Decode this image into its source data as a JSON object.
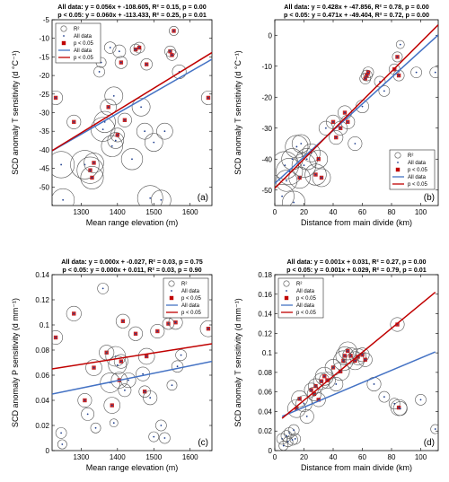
{
  "figure": {
    "colors": {
      "all_data": "#4472c4",
      "significant": "#c00000",
      "point": "#1f3f8f",
      "circle": "#555555"
    },
    "legend_labels": [
      "R²",
      "All data",
      "p < 0.05",
      "All data",
      "p < 0.05"
    ]
  },
  "chart_data": [
    {
      "type": "scatter",
      "panel": "(a)",
      "title_line1": "All data: y = 0.056x + -108.605, R² = 0.15, p = 0.00",
      "title_line2": "p < 0.05: y = 0.060x + -113.433, R² = 0.25, p = 0.01",
      "xlabel": "Mean range elevation (m)",
      "ylabel": "SCD anomaly T sensitivity (d °C⁻¹)",
      "xlim": [
        1220,
        1660
      ],
      "ylim": [
        -55,
        -5
      ],
      "xticks": [
        1300,
        1400,
        1500,
        1600
      ],
      "yticks": [
        -50,
        -45,
        -40,
        -35,
        -30,
        -25,
        -20,
        -15,
        -10,
        -5
      ],
      "legend_position": "top-left",
      "fit_all": {
        "slope": 0.056,
        "intercept": -108.605
      },
      "fit_sig": {
        "slope": 0.06,
        "intercept": -113.433
      },
      "points": [
        {
          "x": 1230,
          "y": -26,
          "r2": 0.1,
          "sig": true
        },
        {
          "x": 1245,
          "y": -44,
          "r2": 0.5,
          "sig": false
        },
        {
          "x": 1250,
          "y": -53.5,
          "r2": 0.35,
          "sig": false
        },
        {
          "x": 1280,
          "y": -32.5,
          "r2": 0.1,
          "sig": true
        },
        {
          "x": 1310,
          "y": -44,
          "r2": 0.6,
          "sig": false
        },
        {
          "x": 1325,
          "y": -45.5,
          "r2": 0.5,
          "sig": true
        },
        {
          "x": 1330,
          "y": -47.5,
          "r2": 0.35,
          "sig": true
        },
        {
          "x": 1335,
          "y": -43.5,
          "r2": 0.25,
          "sig": true
        },
        {
          "x": 1350,
          "y": -19,
          "r2": 0.05,
          "sig": false
        },
        {
          "x": 1355,
          "y": -16.5,
          "r2": 0.04,
          "sig": false
        },
        {
          "x": 1360,
          "y": -34.5,
          "r2": 0.4,
          "sig": false
        },
        {
          "x": 1365,
          "y": -32.5,
          "r2": 0.3,
          "sig": false
        },
        {
          "x": 1375,
          "y": -28.5,
          "r2": 0.15,
          "sig": true
        },
        {
          "x": 1380,
          "y": -12.5,
          "r2": 0.06,
          "sig": false
        },
        {
          "x": 1385,
          "y": -39,
          "r2": 0.3,
          "sig": false
        },
        {
          "x": 1390,
          "y": -25.5,
          "r2": 0.2,
          "sig": false
        },
        {
          "x": 1395,
          "y": -37.5,
          "r2": 0.15,
          "sig": false
        },
        {
          "x": 1400,
          "y": -36,
          "r2": 0.1,
          "sig": true
        },
        {
          "x": 1405,
          "y": -13.5,
          "r2": 0.08,
          "sig": false
        },
        {
          "x": 1410,
          "y": -16.5,
          "r2": 0.07,
          "sig": true
        },
        {
          "x": 1420,
          "y": -32,
          "r2": 0.1,
          "sig": true
        },
        {
          "x": 1440,
          "y": -42.5,
          "r2": 0.3,
          "sig": false
        },
        {
          "x": 1450,
          "y": -13,
          "r2": 0.05,
          "sig": true
        },
        {
          "x": 1460,
          "y": -12.5,
          "r2": 0.05,
          "sig": true
        },
        {
          "x": 1465,
          "y": -28.5,
          "r2": 0.2,
          "sig": false
        },
        {
          "x": 1475,
          "y": -35,
          "r2": 0.15,
          "sig": false
        },
        {
          "x": 1480,
          "y": -17,
          "r2": 0.06,
          "sig": true
        },
        {
          "x": 1490,
          "y": -53,
          "r2": 0.45,
          "sig": false
        },
        {
          "x": 1500,
          "y": -38,
          "r2": 0.2,
          "sig": false
        },
        {
          "x": 1520,
          "y": -53.5,
          "r2": 0.25,
          "sig": false
        },
        {
          "x": 1530,
          "y": -35,
          "r2": 0.15,
          "sig": false
        },
        {
          "x": 1545,
          "y": -13.5,
          "r2": 0.05,
          "sig": true
        },
        {
          "x": 1550,
          "y": -14.5,
          "r2": 0.05,
          "sig": true
        },
        {
          "x": 1555,
          "y": -8,
          "r2": 0.03,
          "sig": true
        },
        {
          "x": 1570,
          "y": -19,
          "r2": 0.1,
          "sig": false
        },
        {
          "x": 1650,
          "y": -26,
          "r2": 0.1,
          "sig": true
        }
      ]
    },
    {
      "type": "scatter",
      "panel": "(b)",
      "title_line1": "All data: y = 0.428x + -47.856, R² = 0.78, p = 0.00",
      "title_line2": "p < 0.05: y = 0.471x + -49.404, R² = 0.72, p = 0.00",
      "xlabel": "Distance from main divide (km)",
      "ylabel": "SCD anomaly T sensitivity (d °C⁻¹)",
      "xlim": [
        0,
        112
      ],
      "ylim": [
        -55,
        5
      ],
      "xticks": [
        0,
        20,
        40,
        60,
        80,
        100
      ],
      "yticks": [
        -50,
        -40,
        -30,
        -20,
        -10,
        0
      ],
      "legend_position": "bottom-right",
      "fit_all": {
        "slope": 0.428,
        "intercept": -47.856
      },
      "fit_sig": {
        "slope": 0.471,
        "intercept": -49.404
      },
      "points": [
        {
          "x": 5,
          "y": -52,
          "r2": 0.4,
          "sig": false
        },
        {
          "x": 7,
          "y": -42,
          "r2": 0.55,
          "sig": false
        },
        {
          "x": 8,
          "y": -47,
          "r2": 0.3,
          "sig": false
        },
        {
          "x": 10,
          "y": -44,
          "r2": 0.5,
          "sig": false
        },
        {
          "x": 12,
          "y": -40,
          "r2": 0.3,
          "sig": false
        },
        {
          "x": 13,
          "y": -54,
          "r2": 0.35,
          "sig": false
        },
        {
          "x": 15,
          "y": -36,
          "r2": 0.35,
          "sig": false
        },
        {
          "x": 17,
          "y": -46,
          "r2": 0.3,
          "sig": true
        },
        {
          "x": 18,
          "y": -35,
          "r2": 0.2,
          "sig": false
        },
        {
          "x": 20,
          "y": -42,
          "r2": 0.4,
          "sig": false
        },
        {
          "x": 22,
          "y": -40,
          "r2": 0.3,
          "sig": false
        },
        {
          "x": 25,
          "y": -38,
          "r2": 0.2,
          "sig": false
        },
        {
          "x": 28,
          "y": -45,
          "r2": 0.3,
          "sig": true
        },
        {
          "x": 30,
          "y": -40,
          "r2": 0.2,
          "sig": true
        },
        {
          "x": 32,
          "y": -46,
          "r2": 0.2,
          "sig": true
        },
        {
          "x": 35,
          "y": -30,
          "r2": 0.1,
          "sig": false
        },
        {
          "x": 40,
          "y": -28,
          "r2": 0.1,
          "sig": true
        },
        {
          "x": 42,
          "y": -33,
          "r2": 0.1,
          "sig": true
        },
        {
          "x": 45,
          "y": -30,
          "r2": 0.1,
          "sig": true
        },
        {
          "x": 48,
          "y": -25,
          "r2": 0.1,
          "sig": true
        },
        {
          "x": 50,
          "y": -28,
          "r2": 0.1,
          "sig": true
        },
        {
          "x": 55,
          "y": -35,
          "r2": 0.1,
          "sig": false
        },
        {
          "x": 60,
          "y": -23,
          "r2": 0.08,
          "sig": false
        },
        {
          "x": 62,
          "y": -14,
          "r2": 0.05,
          "sig": true
        },
        {
          "x": 63,
          "y": -13,
          "r2": 0.05,
          "sig": true
        },
        {
          "x": 64,
          "y": -12,
          "r2": 0.05,
          "sig": true
        },
        {
          "x": 72,
          "y": -15,
          "r2": 0.05,
          "sig": false
        },
        {
          "x": 75,
          "y": -18,
          "r2": 0.05,
          "sig": false
        },
        {
          "x": 82,
          "y": -11,
          "r2": 0.05,
          "sig": true
        },
        {
          "x": 84,
          "y": -7,
          "r2": 0.04,
          "sig": true
        },
        {
          "x": 85,
          "y": -13,
          "r2": 0.05,
          "sig": true
        },
        {
          "x": 86,
          "y": -3,
          "r2": 0.02,
          "sig": false
        },
        {
          "x": 97,
          "y": -12,
          "r2": 0.05,
          "sig": false
        },
        {
          "x": 110,
          "y": -12,
          "r2": 0.05,
          "sig": false
        }
      ]
    },
    {
      "type": "scatter",
      "panel": "(c)",
      "title_line1": "All data: y = 0.000x + -0.027, R² = 0.03, p = 0.75",
      "title_line2": "p < 0.05: y = 0.000x + 0.011, R² = 0.03, p = 0.90",
      "xlabel": "Mean range elevation (m)",
      "ylabel": "SCD anomaly P sensitivity (d mm⁻¹)",
      "xlim": [
        1220,
        1660
      ],
      "ylim": [
        0,
        0.14
      ],
      "xticks": [
        1300,
        1400,
        1500,
        1600
      ],
      "yticks": [
        0,
        0.02,
        0.04,
        0.06,
        0.08,
        0.1,
        0.12,
        0.14
      ],
      "legend_position": "top-right",
      "fit_all": {
        "x": [
          1220,
          1660
        ],
        "y": [
          0.045,
          0.071
        ]
      },
      "fit_sig": {
        "x": [
          1220,
          1660
        ],
        "y": [
          0.065,
          0.085
        ]
      },
      "points": [
        {
          "x": 1230,
          "y": 0.09,
          "r2": 0.1,
          "sig": true
        },
        {
          "x": 1245,
          "y": 0.014,
          "r2": 0.05,
          "sig": false
        },
        {
          "x": 1248,
          "y": 0.005,
          "r2": 0.03,
          "sig": false
        },
        {
          "x": 1280,
          "y": 0.109,
          "r2": 0.12,
          "sig": true
        },
        {
          "x": 1310,
          "y": 0.04,
          "r2": 0.1,
          "sig": true
        },
        {
          "x": 1318,
          "y": 0.029,
          "r2": 0.08,
          "sig": false
        },
        {
          "x": 1335,
          "y": 0.066,
          "r2": 0.15,
          "sig": true
        },
        {
          "x": 1340,
          "y": 0.018,
          "r2": 0.04,
          "sig": false
        },
        {
          "x": 1360,
          "y": 0.129,
          "r2": 0.05,
          "sig": false
        },
        {
          "x": 1370,
          "y": 0.078,
          "r2": 0.12,
          "sig": true
        },
        {
          "x": 1380,
          "y": 0.054,
          "r2": 0.25,
          "sig": false
        },
        {
          "x": 1385,
          "y": 0.036,
          "r2": 0.15,
          "sig": true
        },
        {
          "x": 1390,
          "y": 0.022,
          "r2": 0.02,
          "sig": false
        },
        {
          "x": 1395,
          "y": 0.075,
          "r2": 0.25,
          "sig": false
        },
        {
          "x": 1400,
          "y": 0.068,
          "r2": 0.2,
          "sig": false
        },
        {
          "x": 1405,
          "y": 0.056,
          "r2": 0.15,
          "sig": true
        },
        {
          "x": 1410,
          "y": 0.071,
          "r2": 0.1,
          "sig": true
        },
        {
          "x": 1415,
          "y": 0.103,
          "r2": 0.1,
          "sig": true
        },
        {
          "x": 1420,
          "y": 0.048,
          "r2": 0.08,
          "sig": false
        },
        {
          "x": 1430,
          "y": 0.056,
          "r2": 0.12,
          "sig": false
        },
        {
          "x": 1450,
          "y": 0.093,
          "r2": 0.1,
          "sig": true
        },
        {
          "x": 1470,
          "y": 0.061,
          "r2": 0.1,
          "sig": false
        },
        {
          "x": 1475,
          "y": 0.047,
          "r2": 0.06,
          "sig": true
        },
        {
          "x": 1480,
          "y": 0.075,
          "r2": 0.15,
          "sig": true
        },
        {
          "x": 1490,
          "y": 0.042,
          "r2": 0.1,
          "sig": false
        },
        {
          "x": 1500,
          "y": 0.011,
          "r2": 0.04,
          "sig": false
        },
        {
          "x": 1510,
          "y": 0.095,
          "r2": 0.1,
          "sig": true
        },
        {
          "x": 1520,
          "y": 0.02,
          "r2": 0.05,
          "sig": false
        },
        {
          "x": 1530,
          "y": 0.01,
          "r2": 0.05,
          "sig": false
        },
        {
          "x": 1540,
          "y": 0.101,
          "r2": 0.06,
          "sig": true
        },
        {
          "x": 1550,
          "y": 0.052,
          "r2": 0.04,
          "sig": false
        },
        {
          "x": 1560,
          "y": 0.102,
          "r2": 0.1,
          "sig": true
        },
        {
          "x": 1565,
          "y": 0.067,
          "r2": 0.06,
          "sig": false
        },
        {
          "x": 1575,
          "y": 0.076,
          "r2": 0.05,
          "sig": false
        },
        {
          "x": 1650,
          "y": 0.097,
          "r2": 0.15,
          "sig": true
        }
      ]
    },
    {
      "type": "scatter",
      "panel": "(d)",
      "title_line1": "All data: y = 0.001x + 0.031, R² = 0.27, p = 0.00",
      "title_line2": "p < 0.05: y = 0.001x + 0.029, R² = 0.79, p = 0.01",
      "xlabel": "Distance from main divide (km)",
      "ylabel": "SCD anomaly T sensitivity (d mm⁻¹)",
      "xlim": [
        0,
        112
      ],
      "ylim": [
        0,
        0.18
      ],
      "xticks": [
        0,
        20,
        40,
        60,
        80,
        100
      ],
      "yticks": [
        0,
        0.02,
        0.04,
        0.06,
        0.08,
        0.1,
        0.12,
        0.14,
        0.16,
        0.18
      ],
      "legend_position": "top-left",
      "fit_all": {
        "x": [
          5,
          110
        ],
        "y": [
          0.035,
          0.101
        ]
      },
      "fit_sig": {
        "x": [
          5,
          110
        ],
        "y": [
          0.033,
          0.162
        ]
      },
      "points": [
        {
          "x": 5,
          "y": 0.012,
          "r2": 0.05,
          "sig": false
        },
        {
          "x": 6,
          "y": 0.005,
          "r2": 0.03,
          "sig": false
        },
        {
          "x": 8,
          "y": 0.015,
          "r2": 0.05,
          "sig": false
        },
        {
          "x": 9,
          "y": 0.009,
          "r2": 0.04,
          "sig": false
        },
        {
          "x": 10,
          "y": 0.018,
          "r2": 0.05,
          "sig": false
        },
        {
          "x": 12,
          "y": 0.011,
          "r2": 0.05,
          "sig": false
        },
        {
          "x": 13,
          "y": 0.021,
          "r2": 0.05,
          "sig": false
        },
        {
          "x": 14,
          "y": 0.012,
          "r2": 0.05,
          "sig": false
        },
        {
          "x": 15,
          "y": 0.043,
          "r2": 0.2,
          "sig": true
        },
        {
          "x": 17,
          "y": 0.053,
          "r2": 0.15,
          "sig": true
        },
        {
          "x": 20,
          "y": 0.048,
          "r2": 0.15,
          "sig": false
        },
        {
          "x": 22,
          "y": 0.035,
          "r2": 0.1,
          "sig": false
        },
        {
          "x": 25,
          "y": 0.062,
          "r2": 0.1,
          "sig": true
        },
        {
          "x": 27,
          "y": 0.058,
          "r2": 0.1,
          "sig": true
        },
        {
          "x": 28,
          "y": 0.066,
          "r2": 0.12,
          "sig": true
        },
        {
          "x": 30,
          "y": 0.052,
          "r2": 0.1,
          "sig": true
        },
        {
          "x": 32,
          "y": 0.071,
          "r2": 0.15,
          "sig": true
        },
        {
          "x": 34,
          "y": 0.076,
          "r2": 0.2,
          "sig": true
        },
        {
          "x": 36,
          "y": 0.072,
          "r2": 0.15,
          "sig": true
        },
        {
          "x": 40,
          "y": 0.085,
          "r2": 0.15,
          "sig": true
        },
        {
          "x": 42,
          "y": 0.068,
          "r2": 0.1,
          "sig": false
        },
        {
          "x": 45,
          "y": 0.081,
          "r2": 0.2,
          "sig": true
        },
        {
          "x": 47,
          "y": 0.092,
          "r2": 0.25,
          "sig": true
        },
        {
          "x": 48,
          "y": 0.097,
          "r2": 0.2,
          "sig": true
        },
        {
          "x": 50,
          "y": 0.102,
          "r2": 0.2,
          "sig": true
        },
        {
          "x": 52,
          "y": 0.097,
          "r2": 0.15,
          "sig": true
        },
        {
          "x": 55,
          "y": 0.092,
          "r2": 0.2,
          "sig": true
        },
        {
          "x": 57,
          "y": 0.096,
          "r2": 0.15,
          "sig": true
        },
        {
          "x": 60,
          "y": 0.098,
          "r2": 0.1,
          "sig": true
        },
        {
          "x": 62,
          "y": 0.093,
          "r2": 0.1,
          "sig": true
        },
        {
          "x": 68,
          "y": 0.068,
          "r2": 0.1,
          "sig": false
        },
        {
          "x": 75,
          "y": 0.055,
          "r2": 0.05,
          "sig": false
        },
        {
          "x": 82,
          "y": 0.048,
          "r2": 0.05,
          "sig": false
        },
        {
          "x": 84,
          "y": 0.129,
          "r2": 0.1,
          "sig": true
        },
        {
          "x": 85,
          "y": 0.044,
          "r2": 0.15,
          "sig": true
        },
        {
          "x": 86,
          "y": 0.043,
          "r2": 0.1,
          "sig": false
        },
        {
          "x": 100,
          "y": 0.052,
          "r2": 0.05,
          "sig": false
        },
        {
          "x": 110,
          "y": 0.022,
          "r2": 0.03,
          "sig": false
        }
      ]
    }
  ]
}
